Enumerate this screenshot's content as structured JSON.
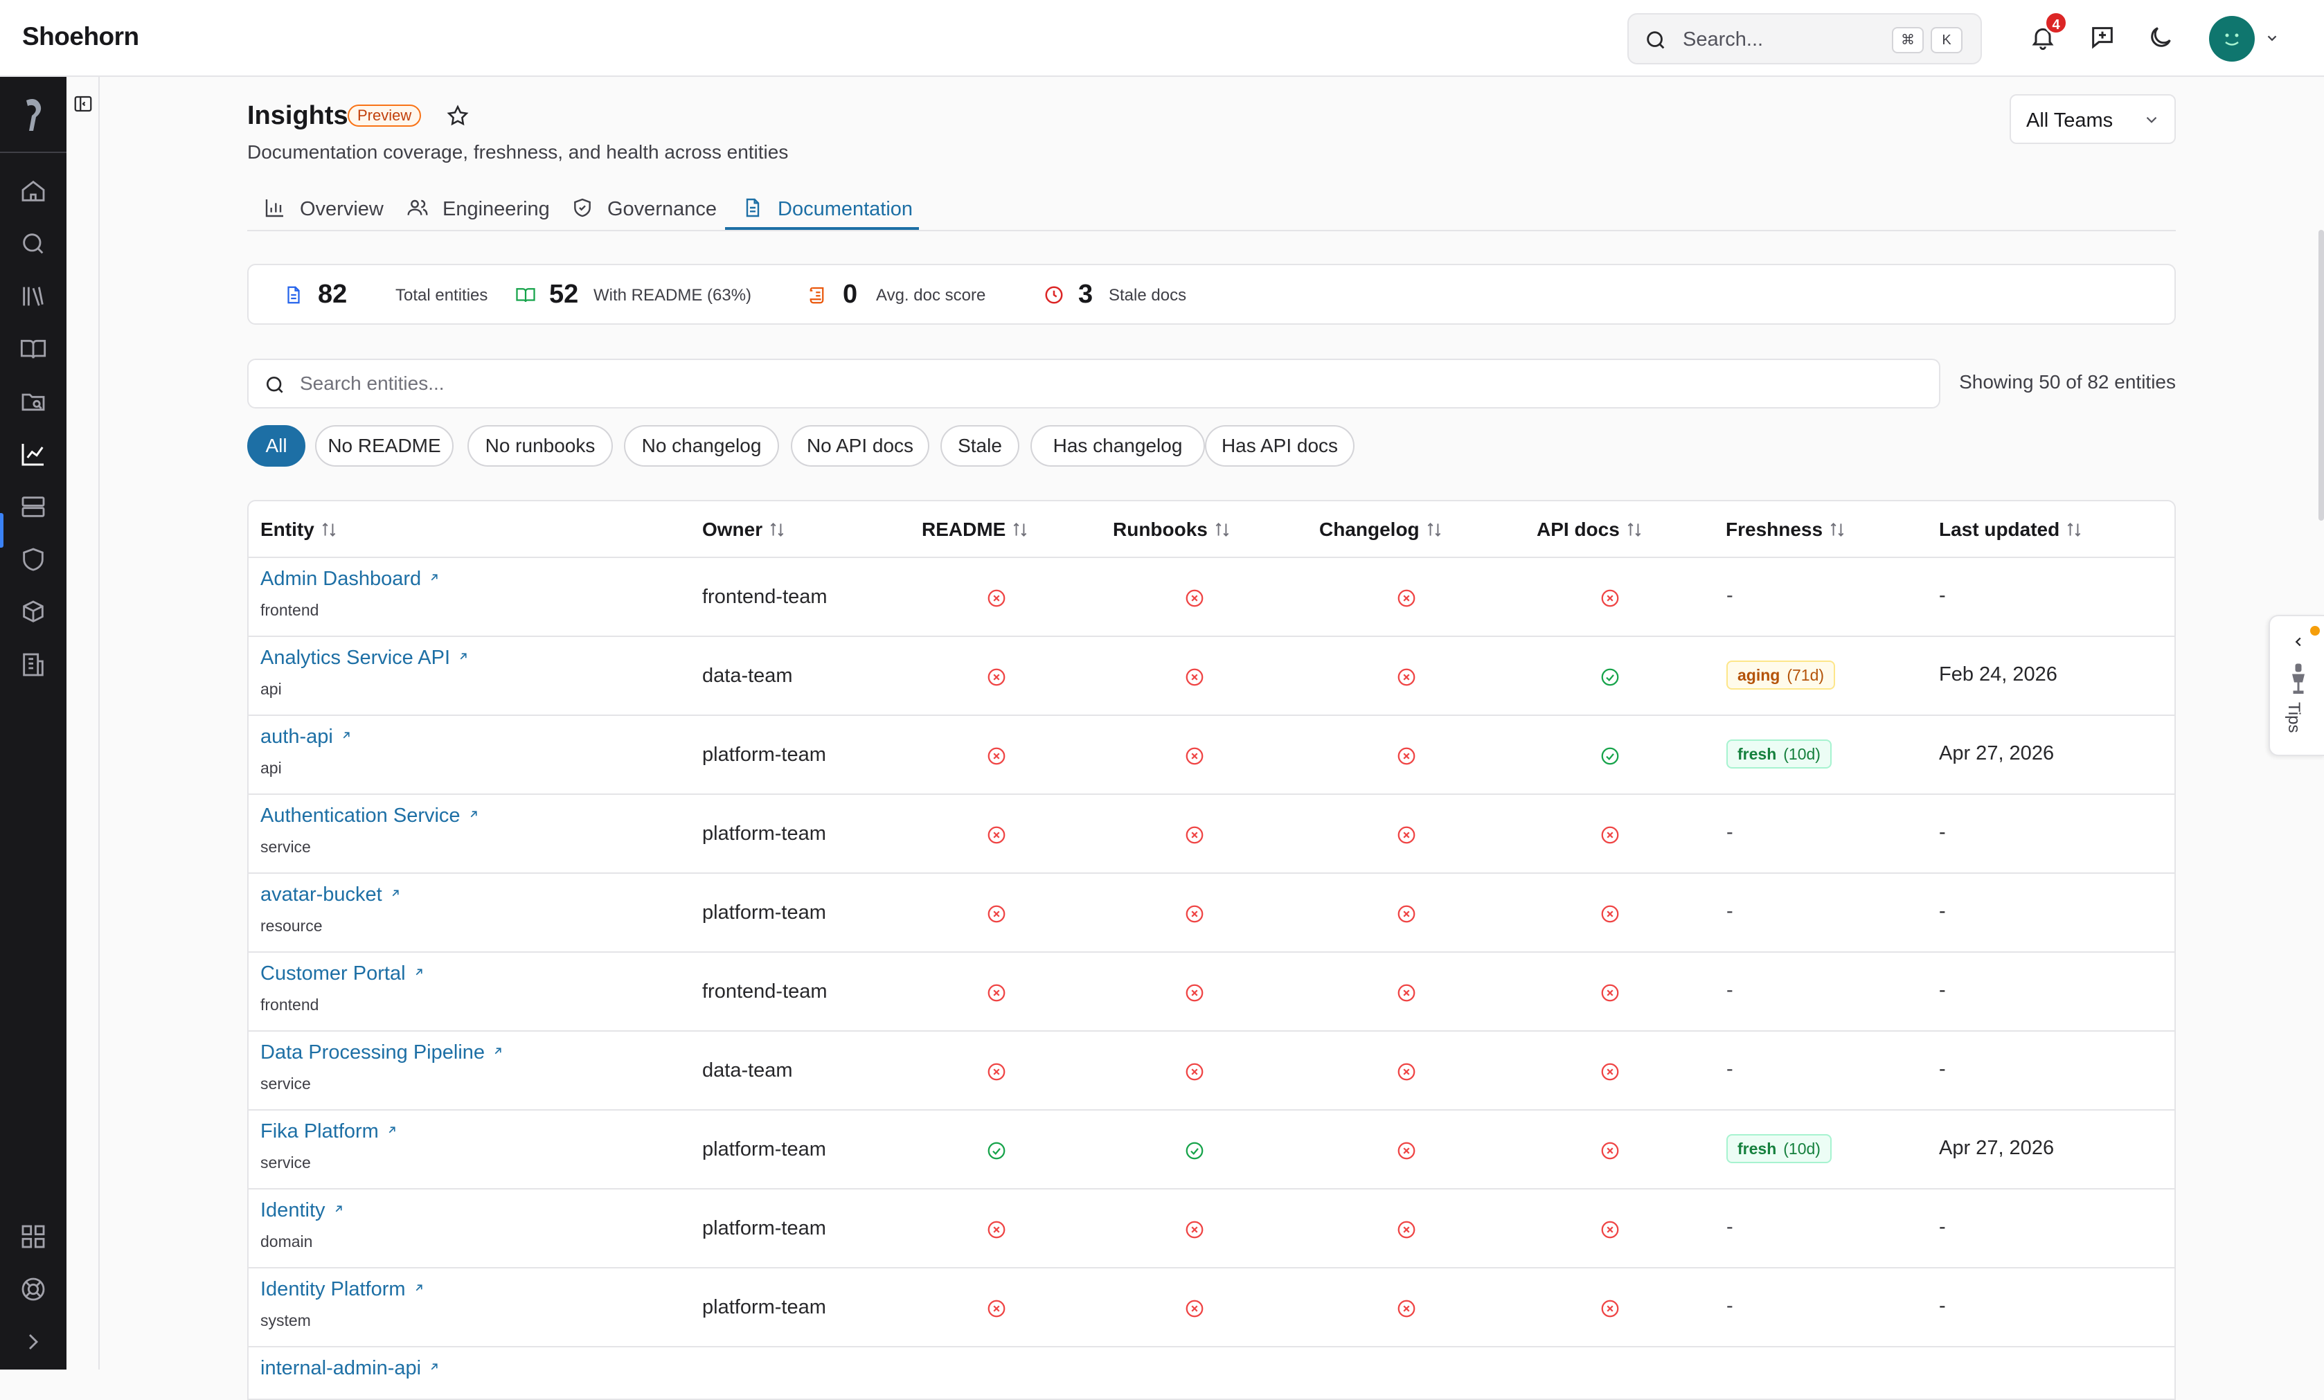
{
  "app": {
    "brand": "Shoehorn"
  },
  "topbar": {
    "search_placeholder": "Search...",
    "kbd_cmd": "⌘",
    "kbd_k": "K",
    "notifications_count": "4"
  },
  "page": {
    "title": "Insights",
    "badge": "Preview",
    "subtitle": "Documentation coverage, freshness, and health across entities",
    "team_filter": "All Teams"
  },
  "tabs": [
    {
      "label": "Overview",
      "icon": "bar-chart-icon"
    },
    {
      "label": "Engineering",
      "icon": "users-icon"
    },
    {
      "label": "Governance",
      "icon": "shield-check-icon"
    },
    {
      "label": "Documentation",
      "icon": "file-text-icon",
      "active": true
    }
  ],
  "stats": [
    {
      "value": "82",
      "label": "Total entities",
      "color": "#2563eb"
    },
    {
      "value": "52",
      "label": "With README (63%)",
      "color": "#16a34a"
    },
    {
      "value": "0",
      "label": "Avg. doc score",
      "color": "#ea580c"
    },
    {
      "value": "3",
      "label": "Stale docs",
      "color": "#dc2626"
    }
  ],
  "entity_search": {
    "placeholder": "Search entities...",
    "showing": "Showing 50 of 82 entities"
  },
  "filters": [
    "All",
    "No README",
    "No runbooks",
    "No changelog",
    "No API docs",
    "Stale",
    "Has changelog",
    "Has API docs"
  ],
  "table": {
    "columns": [
      "Entity",
      "Owner",
      "README",
      "Runbooks",
      "Changelog",
      "API docs",
      "Freshness",
      "Last updated"
    ],
    "rows": [
      {
        "name": "Admin Dashboard",
        "type": "frontend",
        "owner": "frontend-team",
        "readme": false,
        "runbooks": false,
        "changelog": false,
        "api_docs": false,
        "freshness": "-",
        "freshness_days": "",
        "last_updated": "-"
      },
      {
        "name": "Analytics Service API",
        "type": "api",
        "owner": "data-team",
        "readme": false,
        "runbooks": false,
        "changelog": false,
        "api_docs": true,
        "freshness": "aging",
        "freshness_days": "(71d)",
        "last_updated": "Feb 24, 2026"
      },
      {
        "name": "auth-api",
        "type": "api",
        "owner": "platform-team",
        "readme": false,
        "runbooks": false,
        "changelog": false,
        "api_docs": true,
        "freshness": "fresh",
        "freshness_days": "(10d)",
        "last_updated": "Apr 27, 2026"
      },
      {
        "name": "Authentication Service",
        "type": "service",
        "owner": "platform-team",
        "readme": false,
        "runbooks": false,
        "changelog": false,
        "api_docs": false,
        "freshness": "-",
        "freshness_days": "",
        "last_updated": "-"
      },
      {
        "name": "avatar-bucket",
        "type": "resource",
        "owner": "platform-team",
        "readme": false,
        "runbooks": false,
        "changelog": false,
        "api_docs": false,
        "freshness": "-",
        "freshness_days": "",
        "last_updated": "-"
      },
      {
        "name": "Customer Portal",
        "type": "frontend",
        "owner": "frontend-team",
        "readme": false,
        "runbooks": false,
        "changelog": false,
        "api_docs": false,
        "freshness": "-",
        "freshness_days": "",
        "last_updated": "-"
      },
      {
        "name": "Data Processing Pipeline",
        "type": "service",
        "owner": "data-team",
        "readme": false,
        "runbooks": false,
        "changelog": false,
        "api_docs": false,
        "freshness": "-",
        "freshness_days": "",
        "last_updated": "-"
      },
      {
        "name": "Fika Platform",
        "type": "service",
        "owner": "platform-team",
        "readme": true,
        "runbooks": true,
        "changelog": false,
        "api_docs": false,
        "freshness": "fresh",
        "freshness_days": "(10d)",
        "last_updated": "Apr 27, 2026"
      },
      {
        "name": "Identity",
        "type": "domain",
        "owner": "platform-team",
        "readme": false,
        "runbooks": false,
        "changelog": false,
        "api_docs": false,
        "freshness": "-",
        "freshness_days": "",
        "last_updated": "-"
      },
      {
        "name": "Identity Platform",
        "type": "system",
        "owner": "platform-team",
        "readme": false,
        "runbooks": false,
        "changelog": false,
        "api_docs": false,
        "freshness": "-",
        "freshness_days": "",
        "last_updated": "-"
      },
      {
        "name": "internal-admin-api",
        "type": "",
        "owner": "",
        "readme": null,
        "runbooks": null,
        "changelog": null,
        "api_docs": null,
        "freshness": "",
        "freshness_days": "",
        "last_updated": ""
      }
    ]
  },
  "tips": {
    "label": "Tips"
  },
  "colors": {
    "accent": "#1d6fa5",
    "ok": "#16a34a",
    "bad": "#ef4444"
  }
}
